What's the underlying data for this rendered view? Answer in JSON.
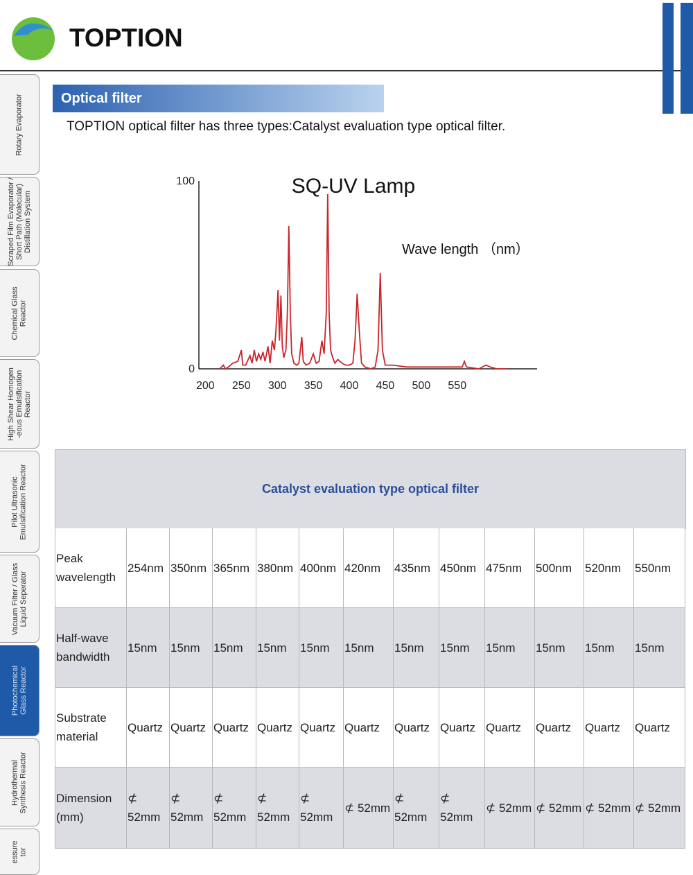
{
  "header": {
    "brand": "TOPTION"
  },
  "sidebar": {
    "items": [
      {
        "lines": [
          "Rotary Evaporator"
        ],
        "active": false
      },
      {
        "lines": [
          "Scraped Film Evaporator /",
          "Short Path (Molecular)",
          "Distillation System"
        ],
        "active": false
      },
      {
        "lines": [
          "Chemical Glass",
          "Reactor"
        ],
        "active": false
      },
      {
        "lines": [
          "High Shear Homogen",
          "-eous Emulsification",
          "Reactor"
        ],
        "active": false
      },
      {
        "lines": [
          "Pilot Ultrasonic",
          "Emulsification Reactor"
        ],
        "active": false
      },
      {
        "lines": [
          "Vacuum Filter / Glass",
          "Liquid Seperator"
        ],
        "active": false
      },
      {
        "lines": [
          "Photochemical",
          "Glass Reactor"
        ],
        "active": true
      },
      {
        "lines": [
          "Hydrothermal",
          "Synthesis Reactor"
        ],
        "active": false
      },
      {
        "lines": [
          "essure",
          "tor"
        ],
        "active": false
      }
    ]
  },
  "section": {
    "title": "Optical filter",
    "intro": "TOPTION optical filter has three types:Catalyst evaluation type optical filter."
  },
  "chart": {
    "type": "line",
    "title": "SQ-UV Lamp",
    "annotation": "Wave length （nm）",
    "color": "#c8262b",
    "x": [
      220,
      225,
      228,
      232,
      238,
      245,
      250,
      252,
      256,
      262,
      265,
      268,
      271,
      274,
      277,
      280,
      283,
      287,
      290,
      293,
      296,
      298,
      301,
      303,
      305,
      307,
      309,
      312,
      314,
      316,
      318,
      320,
      323,
      327,
      330,
      334,
      336,
      340,
      345,
      350,
      354,
      358,
      362,
      365,
      368,
      370,
      372,
      374,
      377,
      380,
      384,
      387,
      390,
      395,
      400,
      405,
      408,
      411,
      414,
      417,
      422,
      430,
      436,
      440,
      443,
      446,
      450,
      460,
      480,
      500,
      540,
      557,
      560,
      563,
      580,
      590,
      596,
      605,
      620
    ],
    "values": [
      0,
      2,
      0,
      1,
      3,
      4,
      10,
      2,
      2,
      7,
      3,
      10,
      4,
      8,
      5,
      9,
      4,
      12,
      3,
      15,
      10,
      20,
      42,
      15,
      39,
      12,
      6,
      10,
      30,
      76,
      30,
      8,
      3,
      2,
      3,
      17,
      4,
      2,
      3,
      8,
      3,
      4,
      15,
      8,
      30,
      93,
      30,
      10,
      6,
      3,
      5,
      4,
      3,
      2,
      2,
      3,
      15,
      40,
      20,
      3,
      1,
      0,
      1,
      10,
      51,
      10,
      2,
      2,
      1,
      1,
      1,
      1,
      4,
      1,
      0,
      2,
      1,
      0,
      0
    ],
    "xlim": [
      191,
      661
    ],
    "ylim": [
      0,
      100
    ],
    "xticks": [
      200,
      250,
      300,
      350,
      400,
      450,
      500,
      550
    ],
    "yticks": [
      0,
      100
    ]
  },
  "table": {
    "title": "Catalyst evaluation type optical filter",
    "rows": [
      [
        "Peak wavelength",
        "254nm",
        "350nm",
        "365nm",
        "380nm",
        "400nm",
        "420nm",
        "435nm",
        "450nm",
        "475nm",
        "500nm",
        "520nm",
        "550nm"
      ],
      [
        "Half-wave bandwidth",
        "15nm",
        "15nm",
        "15nm",
        "15nm",
        "15nm",
        "15nm",
        "15nm",
        "15nm",
        "15nm",
        "15nm",
        "15nm",
        "15nm"
      ],
      [
        "Substrate material",
        "Quartz",
        "Quartz",
        "Quartz",
        "Quartz",
        "Quartz",
        "Quartz",
        "Quartz",
        "Quartz",
        "Quartz",
        "Quartz",
        "Quartz",
        "Quartz"
      ],
      [
        "Dimension (mm)",
        "⊄ 52mm",
        "⊄ 52mm",
        "⊄ 52mm",
        "⊄ 52mm",
        "⊄ 52mm",
        "⊄ 52mm",
        "⊄ 52mm",
        "⊄ 52mm",
        "⊄ 52mm",
        "⊄ 52mm",
        "⊄ 52mm",
        "⊄ 52mm"
      ]
    ]
  }
}
